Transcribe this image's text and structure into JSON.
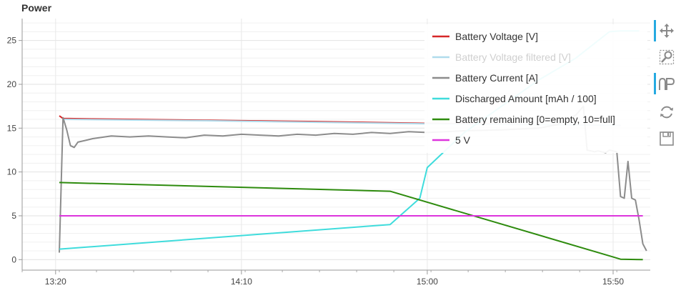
{
  "title": "Power",
  "chart_data": {
    "type": "line",
    "ylim": [
      -1.2,
      27.5
    ],
    "yticks": [
      0,
      5,
      10,
      15,
      20,
      25
    ],
    "xlim": [
      "13:11",
      "16:00"
    ],
    "xticks": [
      {
        "t": "13:20",
        "label": "13:20"
      },
      {
        "t": "14:10",
        "label": "14:10"
      },
      {
        "t": "15:00",
        "label": "15:00"
      },
      {
        "t": "15:50",
        "label": "15:50"
      }
    ],
    "grid": true,
    "legend_position": "top-right",
    "series": [
      {
        "name": "Battery Voltage [V]",
        "color": "#d62728",
        "x": [
          "13:21",
          "13:22",
          "13:30",
          "14:00",
          "14:30",
          "15:00",
          "15:30",
          "15:40",
          "15:52"
        ],
        "y": [
          16.4,
          16.1,
          16.05,
          15.9,
          15.75,
          15.55,
          15.4,
          15.35,
          15.3
        ]
      },
      {
        "name": "Battery Voltage filtered [V]",
        "color": "#b0dcec",
        "x": [
          "13:22",
          "14:00",
          "15:00",
          "15:52"
        ],
        "y": [
          16.0,
          15.85,
          15.5,
          15.3
        ]
      },
      {
        "name": "Battery Current [A]",
        "color": "#8c8c8c",
        "x": [
          "13:21",
          "13:22",
          "13:23",
          "13:24",
          "13:25",
          "13:26",
          "13:28",
          "13:30",
          "13:35",
          "13:40",
          "13:45",
          "13:50",
          "13:55",
          "14:00",
          "14:05",
          "14:10",
          "14:15",
          "14:20",
          "14:25",
          "14:30",
          "14:35",
          "14:40",
          "14:45",
          "14:50",
          "14:55",
          "15:00",
          "15:05",
          "15:10",
          "15:20",
          "15:30",
          "15:35",
          "15:40",
          "15:42",
          "15:43",
          "15:45",
          "15:46",
          "15:48",
          "15:49",
          "15:50",
          "15:51",
          "15:52",
          "15:53",
          "15:54",
          "15:55",
          "15:56",
          "15:57",
          "15:58",
          "15:59"
        ],
        "y": [
          0.8,
          16.2,
          14.8,
          13.0,
          12.8,
          13.4,
          13.6,
          13.8,
          14.1,
          14.0,
          14.1,
          14.0,
          13.9,
          14.2,
          14.1,
          14.3,
          14.2,
          14.1,
          14.3,
          14.2,
          14.4,
          14.3,
          14.5,
          14.4,
          14.6,
          14.5,
          14.6,
          14.7,
          14.8,
          15.0,
          15.4,
          16.5,
          17.5,
          12.5,
          12.3,
          12.4,
          12.2,
          12.5,
          12.4,
          12.3,
          7.2,
          7.0,
          11.2,
          7.0,
          6.8,
          4.5,
          1.8,
          1.0
        ]
      },
      {
        "name": "Discharged Amount [mAh / 100]",
        "color": "#3fdcdc",
        "x": [
          "13:21",
          "14:50",
          "14:58",
          "15:00",
          "15:10",
          "15:20",
          "15:30",
          "15:40",
          "15:49",
          "15:52",
          "15:57"
        ],
        "y": [
          1.2,
          4.0,
          7.0,
          10.5,
          14.5,
          17.5,
          20.5,
          23.0,
          26.0,
          26.1,
          26.1
        ]
      },
      {
        "name": "Battery remaining [0=empty, 10=full]",
        "color": "#2e8b0e",
        "x": [
          "13:21",
          "14:50",
          "15:50",
          "15:52",
          "15:58"
        ],
        "y": [
          8.8,
          7.8,
          0.3,
          0.05,
          0.0
        ]
      },
      {
        "name": "5 V",
        "color": "#dd35dd",
        "x": [
          "13:21",
          "15:58"
        ],
        "y": [
          5,
          5
        ]
      }
    ]
  },
  "toolbar": {
    "tools": [
      {
        "name": "pan-tool",
        "icon": "move-icon",
        "active": true
      },
      {
        "name": "box-zoom-tool",
        "icon": "zoom-box-icon",
        "active": false
      },
      {
        "name": "hover-tool",
        "icon": "hover-icon",
        "active": true
      },
      {
        "name": "reset-tool",
        "icon": "reset-icon",
        "active": false
      },
      {
        "name": "save-tool",
        "icon": "save-icon",
        "active": false
      }
    ]
  }
}
